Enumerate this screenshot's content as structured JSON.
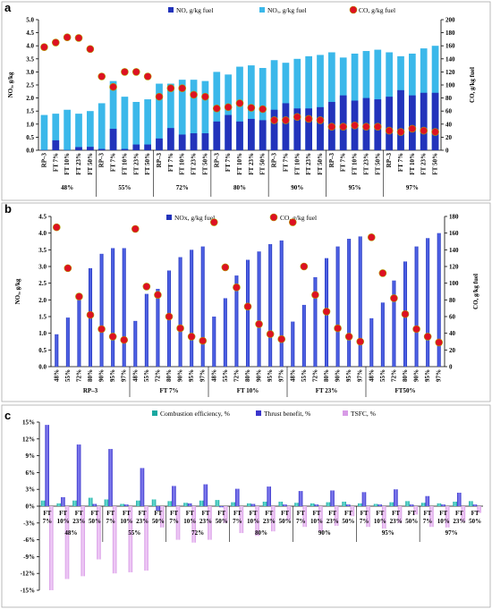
{
  "colors": {
    "nox_dark": "#2233bb",
    "nox_light": "#3bb8ea",
    "co_marker": "#dd1122",
    "comb_eff": "#19a8a0",
    "thrust": "#3a35cc",
    "tsfc": "#d89be6"
  },
  "chart_data": [
    {
      "panel": "a",
      "type": "bar",
      "legend": [
        "NO, g/kg fuel",
        "NOₓ, g/kg fuel",
        "CO,  g/kg fuel"
      ],
      "ylabel_left": "NOₓ, g/kg",
      "ylabel_right": "CO, g/kg fuel",
      "ylim_left": [
        0,
        5
      ],
      "ylim_right": [
        0,
        200
      ],
      "yticks_left": [
        "0.0",
        "0.5",
        "1.0",
        "1.5",
        "2.0",
        "2.5",
        "3.0",
        "3.5",
        "4.0",
        "4.5",
        "5.0"
      ],
      "yticks_right": [
        "0",
        "20",
        "40",
        "60",
        "80",
        "100",
        "120",
        "140",
        "160",
        "180",
        "200"
      ],
      "fuels": [
        "RP–3",
        "FT 7%",
        "FT 10%",
        "FT 23%",
        "FT 50%"
      ],
      "groups": [
        "48%",
        "55%",
        "72%",
        "80%",
        "90%",
        "95%",
        "97%"
      ],
      "series": [
        {
          "name": "NO, g/kg fuel",
          "values": [
            [
              0.01,
              0.38,
              0.01,
              0.12,
              0.13
            ],
            [
              0.05,
              0.82,
              0.05,
              0.22,
              0.22
            ],
            [
              0.45,
              0.85,
              0.6,
              0.65,
              0.65
            ],
            [
              1.1,
              1.35,
              1.1,
              1.2,
              1.15
            ],
            [
              1.55,
              1.8,
              1.6,
              1.6,
              1.65
            ],
            [
              1.85,
              2.1,
              1.9,
              2.0,
              1.95
            ],
            [
              2.05,
              2.3,
              2.1,
              2.2,
              2.2
            ]
          ]
        },
        {
          "name": "NOₓ, g/kg fuel",
          "values": [
            [
              1.35,
              1.4,
              1.55,
              1.4,
              1.5
            ],
            [
              1.8,
              2.65,
              2.05,
              1.85,
              1.95
            ],
            [
              2.55,
              2.55,
              2.7,
              2.7,
              2.65
            ],
            [
              3.0,
              2.9,
              3.2,
              3.25,
              3.15
            ],
            [
              3.45,
              3.35,
              3.5,
              3.6,
              3.65
            ],
            [
              3.75,
              3.55,
              3.7,
              3.8,
              3.85
            ],
            [
              3.75,
              3.6,
              3.7,
              3.9,
              4.0
            ]
          ]
        },
        {
          "name": "CO,  g/kg fuel",
          "values": [
            [
              158,
              165,
              173,
              172,
              155
            ],
            [
              113,
              97,
              120,
              120,
              113
            ],
            [
              82,
              95,
              95,
              85,
              82
            ],
            [
              64,
              66,
              72,
              65,
              63
            ],
            [
              46,
              46,
              51,
              48,
              46
            ],
            [
              36,
              36,
              38,
              36,
              36
            ],
            [
              30,
              28,
              33,
              30,
              28
            ]
          ]
        }
      ]
    },
    {
      "panel": "b",
      "type": "bar",
      "legend": [
        "NOx, g/kg fuel",
        "CO, g/kg fuel"
      ],
      "ylabel_left": "NOₓ, g/kg",
      "ylabel_right": "CO, g/kg fuel",
      "ylim_left": [
        0,
        4.5
      ],
      "ylim_right": [
        0,
        180
      ],
      "yticks_left": [
        "0.0",
        "0.5",
        "1.0",
        "1.5",
        "2.0",
        "2.5",
        "3.0",
        "3.5",
        "4.0",
        "4.5"
      ],
      "yticks_right": [
        "0",
        "20",
        "40",
        "60",
        "80",
        "100",
        "120",
        "140",
        "160",
        "180"
      ],
      "loads": [
        "48%",
        "55%",
        "72%",
        "80%",
        "90%",
        "95%",
        "97%"
      ],
      "groups": [
        "RP–3",
        "FT 7%",
        "FT 10%",
        "FT 23%",
        "FT50%"
      ],
      "series": [
        {
          "name": "NOx, g/kg fuel",
          "values": [
            [
              0.97,
              1.47,
              2.2,
              2.95,
              3.38,
              3.55,
              3.55
            ],
            [
              1.37,
              2.18,
              2.33,
              2.88,
              3.28,
              3.5,
              3.6
            ],
            [
              1.5,
              2.05,
              2.73,
              3.2,
              3.45,
              3.67,
              3.78
            ],
            [
              1.35,
              1.85,
              2.68,
              3.25,
              3.6,
              3.83,
              3.9
            ],
            [
              1.45,
              1.92,
              2.58,
              3.15,
              3.6,
              3.85,
              4.0
            ]
          ]
        },
        {
          "name": "CO, g/kg fuel",
          "values": [
            [
              167,
              118,
              84,
              62,
              45,
              36,
              32
            ],
            [
              165,
              96,
              86,
              60,
              46,
              36,
              31
            ],
            [
              173,
              119,
              95,
              72,
              51,
              39,
              33
            ],
            [
              173,
              120,
              86,
              66,
              46,
              36,
              30
            ],
            [
              155,
              112,
              82,
              63,
              45,
              36,
              29
            ]
          ]
        }
      ]
    },
    {
      "panel": "c",
      "type": "bar",
      "legend": [
        "Combustion efficiency,  %",
        "Thrust benefit,  %",
        "TSFC, %"
      ],
      "ylim": [
        -15,
        15
      ],
      "yticks": [
        "15%",
        "12%",
        "9%",
        "6%",
        "3%",
        "0%",
        "-3%",
        "-6%",
        "-9%",
        "-12%",
        "-15%"
      ],
      "fuels": [
        "FT 7%",
        "FT 10%",
        "FT 23%",
        "FT 50%"
      ],
      "groups": [
        "48%",
        "55%",
        "72%",
        "80%",
        "90%",
        "95%",
        "97%"
      ],
      "series": [
        {
          "name": "Combustion efficiency,  %",
          "values": [
            [
              1.0,
              0.5,
              1.0,
              1.5
            ],
            [
              1.2,
              0.4,
              1.0,
              1.2
            ],
            [
              0.9,
              0.6,
              1.0,
              1.1
            ],
            [
              0.7,
              0.5,
              0.8,
              0.8
            ],
            [
              0.6,
              0.5,
              0.7,
              0.8
            ],
            [
              0.5,
              0.4,
              0.7,
              0.9
            ],
            [
              0.6,
              0.5,
              0.8,
              0.9
            ]
          ]
        },
        {
          "name": "Thrust benefit,  %",
          "values": [
            [
              14.5,
              1.6,
              11.0,
              0.4
            ],
            [
              10.2,
              0.3,
              6.8,
              -0.8
            ],
            [
              3.6,
              0.5,
              3.9,
              -0.2
            ],
            [
              3.1,
              0.4,
              3.5,
              0.3
            ],
            [
              2.7,
              0.3,
              2.8,
              0.3
            ],
            [
              2.5,
              0.3,
              3.0,
              0.3
            ],
            [
              1.8,
              0.3,
              2.4,
              0.3
            ]
          ]
        },
        {
          "name": "TSFC, %",
          "values": [
            [
              -15.0,
              -13.0,
              -12.5,
              -9.5
            ],
            [
              -12.0,
              -11.8,
              -11.5,
              -3.8
            ],
            [
              -6.0,
              -6.5,
              -6.0,
              -3.0
            ],
            [
              -4.8,
              -5.3,
              -4.5,
              -2.5
            ],
            [
              -3.7,
              -4.5,
              -3.5,
              -1.8
            ],
            [
              -3.7,
              -4.0,
              -3.0,
              -1.5
            ],
            [
              -3.7,
              -3.8,
              -2.8,
              -1.2
            ]
          ]
        }
      ]
    }
  ]
}
